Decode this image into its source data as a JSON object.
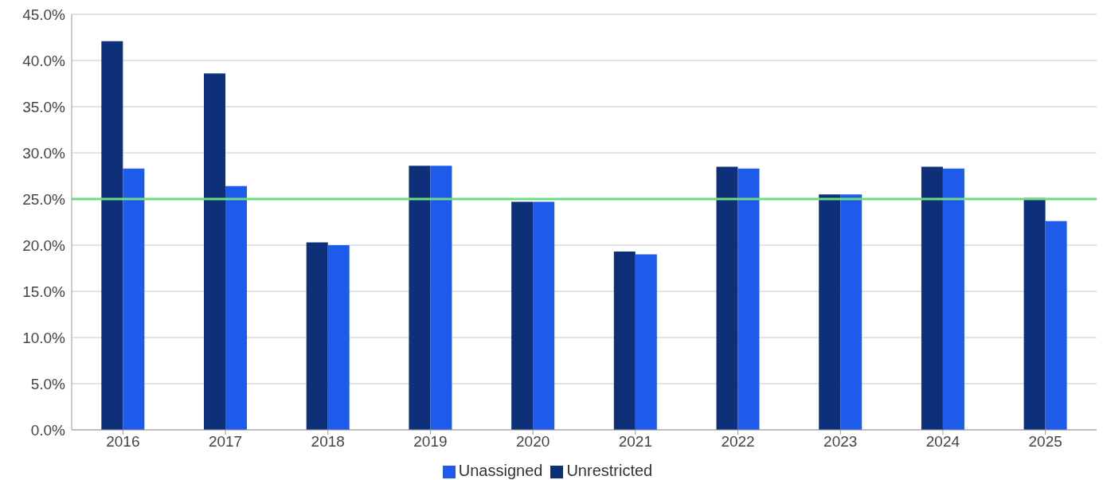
{
  "chart_data": {
    "type": "bar",
    "categories": [
      "2016",
      "2017",
      "2018",
      "2019",
      "2020",
      "2021",
      "2022",
      "2023",
      "2024",
      "2025"
    ],
    "series": [
      {
        "name": "Unrestricted",
        "color": "#0d3078",
        "values": [
          42.1,
          38.6,
          20.3,
          28.6,
          24.7,
          19.3,
          28.5,
          25.5,
          28.5,
          25.1
        ]
      },
      {
        "name": "Unassigned",
        "color": "#1f5bea",
        "values": [
          28.3,
          26.4,
          20.0,
          28.6,
          24.7,
          19.0,
          28.3,
          25.5,
          28.3,
          22.6
        ]
      }
    ],
    "ylim": [
      0,
      45
    ],
    "yticks": [
      {
        "value": 0,
        "label": "0.0%"
      },
      {
        "value": 5,
        "label": "5.0%"
      },
      {
        "value": 10,
        "label": "10.0%"
      },
      {
        "value": 15,
        "label": "15.0%"
      },
      {
        "value": 20,
        "label": "20.0%"
      },
      {
        "value": 25,
        "label": "25.0%"
      },
      {
        "value": 30,
        "label": "30.0%"
      },
      {
        "value": 35,
        "label": "35.0%"
      },
      {
        "value": 40,
        "label": "40.0%"
      },
      {
        "value": 45,
        "label": "45.0%"
      }
    ],
    "ref_lines": [
      {
        "axis": "y",
        "value": 25,
        "color": "#6fdc84"
      }
    ],
    "grid": "y",
    "legend": "bottom"
  }
}
